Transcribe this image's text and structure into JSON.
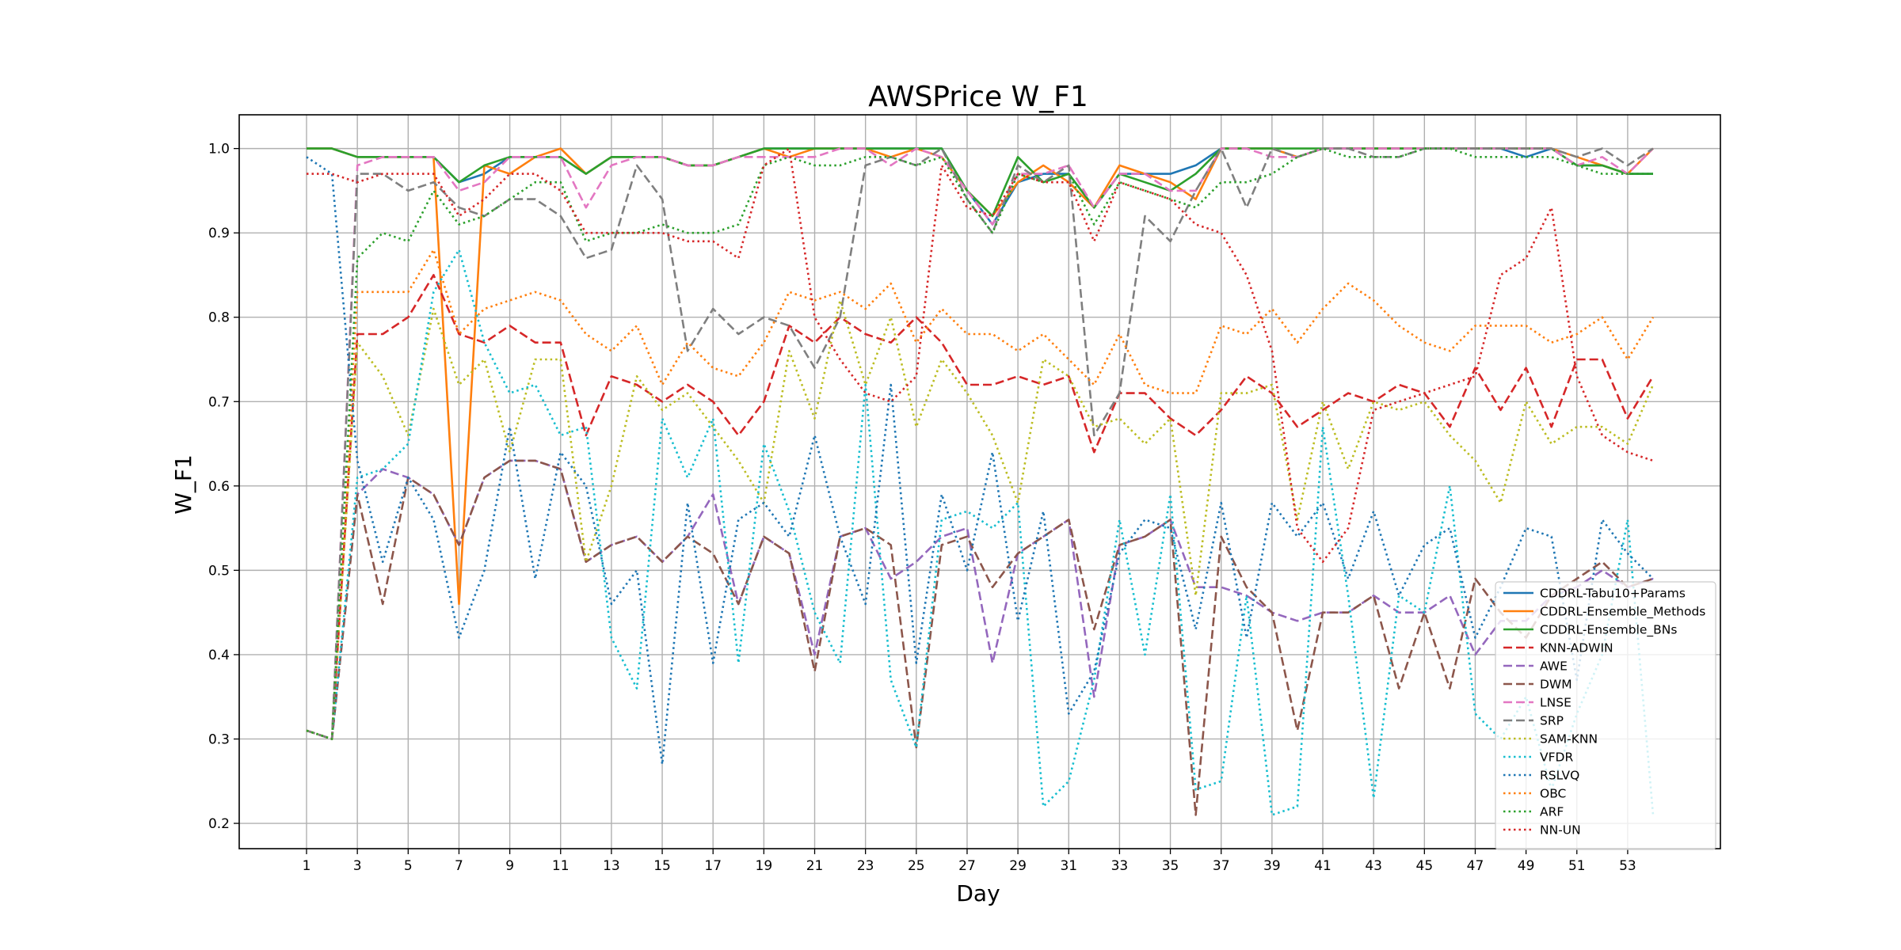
{
  "chart_data": {
    "type": "line",
    "title": "AWSPrice W_F1",
    "xlabel": "Day",
    "ylabel": "W_F1",
    "xlim": [
      -1.65,
      56.65
    ],
    "ylim": [
      0.17,
      1.04
    ],
    "x_ticks": [
      1,
      3,
      5,
      7,
      9,
      11,
      13,
      15,
      17,
      19,
      21,
      23,
      25,
      27,
      29,
      31,
      33,
      35,
      37,
      39,
      41,
      43,
      45,
      47,
      49,
      51,
      53
    ],
    "y_ticks": [
      0.2,
      0.3,
      0.4,
      0.5,
      0.6,
      0.7,
      0.8,
      0.9,
      1.0
    ],
    "y_tick_labels": [
      "0.2",
      "0.3",
      "0.4",
      "0.5",
      "0.6",
      "0.7",
      "0.8",
      "0.9",
      "1.0"
    ],
    "grid": true,
    "legend_position": "lower right",
    "x": [
      1,
      2,
      3,
      4,
      5,
      6,
      7,
      8,
      9,
      10,
      11,
      12,
      13,
      14,
      15,
      16,
      17,
      18,
      19,
      20,
      21,
      22,
      23,
      24,
      25,
      26,
      27,
      28,
      29,
      30,
      31,
      32,
      33,
      34,
      35,
      36,
      37,
      38,
      39,
      40,
      41,
      42,
      43,
      44,
      45,
      46,
      47,
      48,
      49,
      50,
      51,
      52,
      53,
      54
    ],
    "series": [
      {
        "name": "CDDRL-Tabu10+Params",
        "color": "#1f77b4",
        "dash": "solid",
        "values": [
          1.0,
          1.0,
          0.99,
          0.99,
          0.99,
          0.99,
          0.96,
          0.97,
          0.99,
          0.99,
          0.99,
          0.97,
          0.99,
          0.99,
          0.99,
          0.98,
          0.98,
          0.99,
          1.0,
          1.0,
          1.0,
          1.0,
          1.0,
          1.0,
          1.0,
          1.0,
          0.95,
          0.91,
          0.96,
          0.97,
          0.97,
          0.93,
          0.97,
          0.97,
          0.97,
          0.98,
          1.0,
          1.0,
          1.0,
          0.99,
          1.0,
          1.0,
          1.0,
          1.0,
          1.0,
          1.0,
          1.0,
          1.0,
          0.99,
          1.0,
          0.98,
          0.98,
          0.97,
          0.97
        ]
      },
      {
        "name": "CDDRL-Ensemble_Methods",
        "color": "#ff7f0e",
        "dash": "solid",
        "values": [
          1.0,
          1.0,
          0.99,
          0.99,
          0.99,
          0.99,
          0.46,
          0.98,
          0.97,
          0.99,
          1.0,
          0.97,
          0.99,
          0.99,
          0.99,
          0.98,
          0.98,
          0.99,
          1.0,
          0.99,
          1.0,
          1.0,
          1.0,
          0.99,
          1.0,
          0.99,
          0.95,
          0.92,
          0.96,
          0.98,
          0.96,
          0.93,
          0.98,
          0.97,
          0.96,
          0.94,
          1.0,
          1.0,
          1.0,
          0.99,
          1.0,
          1.0,
          1.0,
          1.0,
          1.0,
          1.0,
          1.0,
          1.0,
          1.0,
          1.0,
          0.99,
          0.98,
          0.97,
          1.0
        ]
      },
      {
        "name": "CDDRL-Ensemble_BNs",
        "color": "#2ca02c",
        "dash": "solid",
        "values": [
          1.0,
          1.0,
          0.99,
          0.99,
          0.99,
          0.99,
          0.96,
          0.98,
          0.99,
          0.99,
          0.99,
          0.97,
          0.99,
          0.99,
          0.99,
          0.98,
          0.98,
          0.99,
          1.0,
          1.0,
          1.0,
          1.0,
          1.0,
          1.0,
          1.0,
          1.0,
          0.95,
          0.92,
          0.99,
          0.96,
          0.97,
          0.93,
          0.97,
          0.96,
          0.95,
          0.97,
          1.0,
          1.0,
          1.0,
          1.0,
          1.0,
          1.0,
          1.0,
          1.0,
          1.0,
          1.0,
          1.0,
          1.0,
          1.0,
          1.0,
          0.98,
          0.98,
          0.97,
          0.97
        ]
      },
      {
        "name": "KNN-ADWIN",
        "color": "#d62728",
        "dash": "dashed",
        "values": [
          0.31,
          0.3,
          0.78,
          0.78,
          0.8,
          0.85,
          0.78,
          0.77,
          0.79,
          0.77,
          0.77,
          0.66,
          0.73,
          0.72,
          0.7,
          0.72,
          0.7,
          0.66,
          0.7,
          0.79,
          0.77,
          0.8,
          0.78,
          0.77,
          0.8,
          0.77,
          0.72,
          0.72,
          0.73,
          0.72,
          0.73,
          0.64,
          0.71,
          0.71,
          0.68,
          0.66,
          0.69,
          0.73,
          0.71,
          0.67,
          0.69,
          0.71,
          0.7,
          0.72,
          0.71,
          0.67,
          0.74,
          0.69,
          0.74,
          0.67,
          0.75,
          0.75,
          0.68,
          0.73
        ]
      },
      {
        "name": "AWE",
        "color": "#9467bd",
        "dash": "dashed",
        "values": [
          0.31,
          0.3,
          0.59,
          0.62,
          0.61,
          0.59,
          0.53,
          0.61,
          0.63,
          0.63,
          0.62,
          0.51,
          0.53,
          0.54,
          0.51,
          0.54,
          0.59,
          0.46,
          0.54,
          0.52,
          0.4,
          0.54,
          0.55,
          0.49,
          0.51,
          0.54,
          0.55,
          0.39,
          0.52,
          0.54,
          0.56,
          0.35,
          0.53,
          0.54,
          0.56,
          0.48,
          0.48,
          0.47,
          0.45,
          0.44,
          0.45,
          0.45,
          0.47,
          0.45,
          0.45,
          0.47,
          0.4,
          0.44,
          0.44,
          0.47,
          0.48,
          0.5,
          0.48,
          0.49
        ]
      },
      {
        "name": "DWM",
        "color": "#8c564b",
        "dash": "dashed",
        "values": [
          0.31,
          0.3,
          0.59,
          0.46,
          0.61,
          0.59,
          0.53,
          0.61,
          0.63,
          0.63,
          0.62,
          0.51,
          0.53,
          0.54,
          0.51,
          0.54,
          0.52,
          0.46,
          0.54,
          0.52,
          0.38,
          0.54,
          0.55,
          0.53,
          0.29,
          0.53,
          0.54,
          0.48,
          0.52,
          0.54,
          0.56,
          0.43,
          0.53,
          0.54,
          0.56,
          0.21,
          0.54,
          0.48,
          0.45,
          0.31,
          0.45,
          0.45,
          0.47,
          0.36,
          0.45,
          0.36,
          0.49,
          0.45,
          0.42,
          0.47,
          0.49,
          0.51,
          0.48,
          0.49
        ]
      },
      {
        "name": "LNSE",
        "color": "#e377c2",
        "dash": "dashed",
        "values": [
          0.31,
          0.3,
          0.98,
          0.99,
          0.99,
          0.99,
          0.95,
          0.96,
          0.99,
          0.99,
          0.99,
          0.93,
          0.98,
          0.99,
          0.99,
          0.98,
          0.98,
          0.99,
          0.99,
          0.99,
          0.99,
          1.0,
          1.0,
          0.98,
          1.0,
          0.99,
          0.95,
          0.91,
          0.97,
          0.97,
          0.98,
          0.93,
          0.97,
          0.97,
          0.95,
          0.95,
          1.0,
          1.0,
          0.99,
          0.99,
          1.0,
          1.0,
          1.0,
          1.0,
          1.0,
          1.0,
          1.0,
          1.0,
          1.0,
          1.0,
          0.98,
          0.99,
          0.97,
          1.0
        ]
      },
      {
        "name": "SRP",
        "color": "#7f7f7f",
        "dash": "dashed",
        "values": [
          0.31,
          0.3,
          0.97,
          0.97,
          0.95,
          0.96,
          0.93,
          0.92,
          0.94,
          0.94,
          0.92,
          0.87,
          0.88,
          0.98,
          0.94,
          0.76,
          0.81,
          0.78,
          0.8,
          0.79,
          0.74,
          0.8,
          0.98,
          0.99,
          0.98,
          1.0,
          0.94,
          0.9,
          0.98,
          0.96,
          0.98,
          0.66,
          0.71,
          0.92,
          0.89,
          0.95,
          1.0,
          0.93,
          1.0,
          0.99,
          1.0,
          1.0,
          0.99,
          0.99,
          1.0,
          1.0,
          1.0,
          1.0,
          1.0,
          1.0,
          0.99,
          1.0,
          0.98,
          1.0
        ]
      },
      {
        "name": "SAM-KNN",
        "color": "#bcbd22",
        "dash": "dotted",
        "values": [
          0.31,
          0.3,
          0.77,
          0.73,
          0.66,
          0.81,
          0.72,
          0.75,
          0.64,
          0.75,
          0.75,
          0.51,
          0.6,
          0.73,
          0.69,
          0.71,
          0.67,
          0.63,
          0.58,
          0.76,
          0.68,
          0.82,
          0.72,
          0.8,
          0.67,
          0.75,
          0.71,
          0.66,
          0.58,
          0.75,
          0.73,
          0.67,
          0.68,
          0.65,
          0.68,
          0.47,
          0.71,
          0.71,
          0.72,
          0.56,
          0.7,
          0.62,
          0.7,
          0.69,
          0.7,
          0.66,
          0.63,
          0.58,
          0.7,
          0.65,
          0.67,
          0.67,
          0.65,
          0.72
        ]
      },
      {
        "name": "VFDR",
        "color": "#17becf",
        "dash": "dotted",
        "values": [
          0.31,
          0.3,
          0.61,
          0.62,
          0.65,
          0.83,
          0.88,
          0.77,
          0.71,
          0.72,
          0.66,
          0.67,
          0.42,
          0.36,
          0.68,
          0.61,
          0.68,
          0.39,
          0.65,
          0.57,
          0.45,
          0.39,
          0.72,
          0.37,
          0.29,
          0.56,
          0.57,
          0.55,
          0.58,
          0.22,
          0.25,
          0.37,
          0.56,
          0.4,
          0.59,
          0.24,
          0.25,
          0.47,
          0.21,
          0.22,
          0.67,
          0.47,
          0.23,
          0.47,
          0.45,
          0.6,
          0.33,
          0.3,
          0.35,
          0.24,
          0.33,
          0.4,
          0.56,
          0.21
        ]
      },
      {
        "name": "RSLVQ",
        "color": "#1f77b4",
        "dash": "dotted",
        "values": [
          0.99,
          0.97,
          0.63,
          0.51,
          0.61,
          0.56,
          0.42,
          0.5,
          0.67,
          0.49,
          0.64,
          0.6,
          0.46,
          0.5,
          0.27,
          0.58,
          0.39,
          0.56,
          0.58,
          0.54,
          0.66,
          0.54,
          0.46,
          0.72,
          0.39,
          0.59,
          0.5,
          0.64,
          0.44,
          0.57,
          0.33,
          0.38,
          0.52,
          0.56,
          0.55,
          0.43,
          0.58,
          0.42,
          0.58,
          0.54,
          0.58,
          0.49,
          0.57,
          0.47,
          0.53,
          0.55,
          0.42,
          0.48,
          0.55,
          0.54,
          0.37,
          0.56,
          0.52,
          0.49
        ]
      },
      {
        "name": "OBC",
        "color": "#ff7f0e",
        "dash": "dotted",
        "values": [
          0.31,
          0.3,
          0.83,
          0.83,
          0.83,
          0.88,
          0.78,
          0.81,
          0.82,
          0.83,
          0.82,
          0.78,
          0.76,
          0.79,
          0.72,
          0.77,
          0.74,
          0.73,
          0.77,
          0.83,
          0.82,
          0.83,
          0.81,
          0.84,
          0.77,
          0.81,
          0.78,
          0.78,
          0.76,
          0.78,
          0.75,
          0.72,
          0.78,
          0.72,
          0.71,
          0.71,
          0.79,
          0.78,
          0.81,
          0.77,
          0.81,
          0.84,
          0.82,
          0.79,
          0.77,
          0.76,
          0.79,
          0.79,
          0.79,
          0.77,
          0.78,
          0.8,
          0.75,
          0.8
        ]
      },
      {
        "name": "ARF",
        "color": "#2ca02c",
        "dash": "dotted",
        "values": [
          0.31,
          0.3,
          0.87,
          0.9,
          0.89,
          0.95,
          0.91,
          0.92,
          0.94,
          0.96,
          0.96,
          0.89,
          0.9,
          0.9,
          0.91,
          0.9,
          0.9,
          0.91,
          0.98,
          0.99,
          0.98,
          0.98,
          0.99,
          0.99,
          0.98,
          0.99,
          0.94,
          0.9,
          0.97,
          0.96,
          0.97,
          0.91,
          0.96,
          0.95,
          0.94,
          0.93,
          0.96,
          0.96,
          0.97,
          0.99,
          1.0,
          0.99,
          0.99,
          0.99,
          1.0,
          1.0,
          0.99,
          0.99,
          0.99,
          0.99,
          0.98,
          0.97,
          0.97,
          0.97
        ]
      },
      {
        "name": "NN-UN",
        "color": "#d62728",
        "dash": "dotted",
        "values": [
          0.97,
          0.97,
          0.96,
          0.97,
          0.97,
          0.97,
          0.92,
          0.94,
          0.97,
          0.97,
          0.95,
          0.9,
          0.9,
          0.9,
          0.9,
          0.89,
          0.89,
          0.87,
          0.98,
          1.0,
          0.8,
          0.75,
          0.71,
          0.7,
          0.73,
          0.98,
          0.93,
          0.92,
          0.97,
          0.96,
          0.96,
          0.89,
          0.96,
          0.95,
          0.94,
          0.91,
          0.9,
          0.85,
          0.76,
          0.55,
          0.51,
          0.55,
          0.69,
          0.7,
          0.71,
          0.72,
          0.73,
          0.85,
          0.87,
          0.93,
          0.73,
          0.66,
          0.64,
          0.63
        ]
      }
    ]
  }
}
